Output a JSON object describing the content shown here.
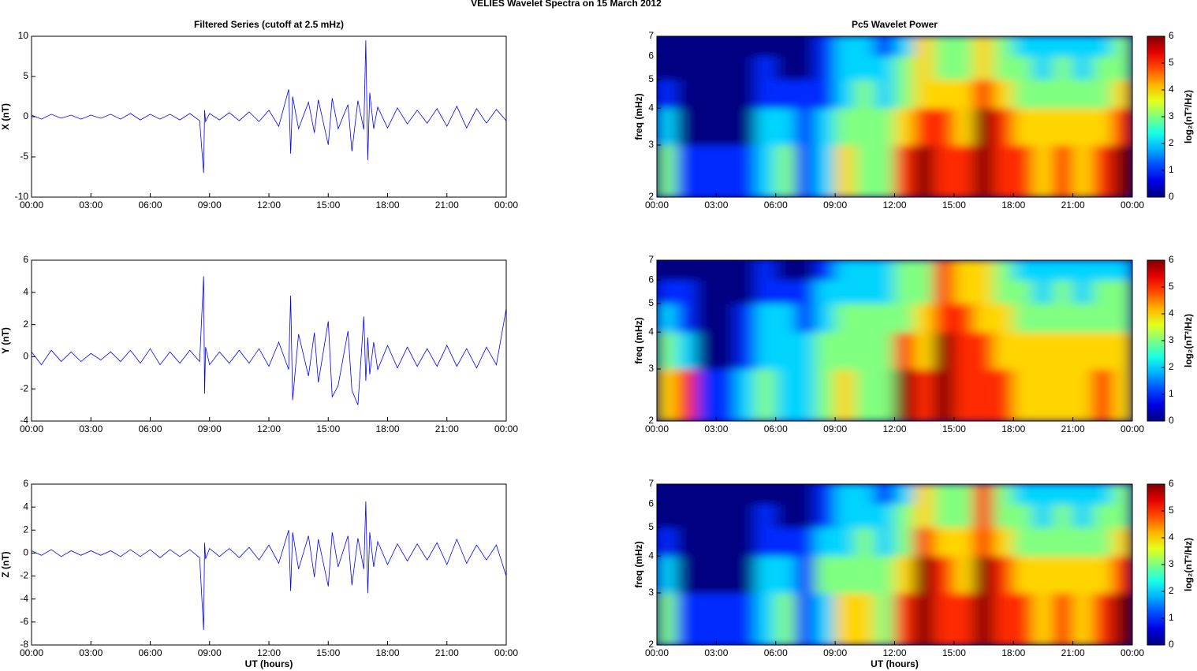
{
  "title": "VELIES Wavelet Spectra on 15 March     2012",
  "chart_data": [
    {
      "type": "line",
      "title": "Filtered Series (cutoff at 2.5 mHz)",
      "ylabel": "X (nT)",
      "x": [
        0,
        0.5,
        1,
        1.5,
        2,
        2.5,
        3,
        3.5,
        4,
        4.5,
        5,
        5.5,
        6,
        6.5,
        7,
        7.5,
        8,
        8.5,
        8.7,
        8.75,
        8.8,
        9,
        9.5,
        10,
        10.5,
        11,
        11.5,
        12,
        12.5,
        13,
        13.1,
        13.2,
        13.5,
        14,
        14.3,
        14.5,
        15,
        15.2,
        15.5,
        16,
        16.2,
        16.5,
        16.8,
        16.9,
        17,
        17.1,
        17.3,
        17.5,
        18,
        18.5,
        19,
        19.5,
        20,
        20.5,
        21,
        21.5,
        22,
        22.5,
        23,
        23.5,
        24
      ],
      "series": [
        {
          "color": "#0000ff",
          "values": [
            0.2,
            -0.3,
            0.3,
            -0.2,
            0.2,
            -0.3,
            0.2,
            -0.2,
            0.3,
            -0.3,
            0.4,
            -0.4,
            0.3,
            -0.3,
            0.3,
            -0.4,
            0.4,
            -0.5,
            -7,
            0.8,
            -0.6,
            0.4,
            -0.4,
            0.5,
            -0.5,
            0.6,
            -0.6,
            0.8,
            -1.2,
            3.4,
            -4.6,
            2.5,
            -1.5,
            1.8,
            -2,
            2.1,
            -3.5,
            2.3,
            -1.5,
            1.5,
            -4.3,
            2,
            -1.6,
            9.5,
            -5.4,
            3,
            -1.5,
            1.2,
            -1.4,
            1.1,
            -0.9,
            0.8,
            -0.8,
            1,
            -1.2,
            1.3,
            -1.4,
            1,
            -0.8,
            0.9,
            -0.5
          ]
        }
      ],
      "xlim": [
        0,
        24
      ],
      "xticks": [
        {
          "value": 0,
          "label": "00:00"
        },
        {
          "value": 3,
          "label": "03:00"
        },
        {
          "value": 6,
          "label": "06:00"
        },
        {
          "value": 9,
          "label": "09:00"
        },
        {
          "value": 12,
          "label": "12:00"
        },
        {
          "value": 15,
          "label": "15:00"
        },
        {
          "value": 18,
          "label": "18:00"
        },
        {
          "value": 21,
          "label": "21:00"
        },
        {
          "value": 24,
          "label": "00:00"
        }
      ],
      "ylim": [
        -10,
        10
      ],
      "yticks": [
        -10,
        -5,
        0,
        5,
        10
      ]
    },
    {
      "type": "heatmap",
      "title": "Pc5 Wavelet Power",
      "ylabel": "freq (mHz)",
      "colorbar_label": "log₂(nT²/Hz)",
      "colormap": "jet",
      "log_y": true,
      "x": [
        0,
        1,
        2,
        3,
        4,
        5,
        6,
        7,
        8,
        9,
        10,
        11,
        12,
        13,
        14,
        15,
        16,
        17,
        18,
        19,
        20,
        21,
        22,
        23,
        24
      ],
      "y": [
        2,
        3,
        4,
        5,
        6,
        7
      ],
      "values": [
        [
          3,
          1,
          1,
          1,
          1,
          2,
          3,
          1,
          2,
          4,
          3,
          3,
          5,
          6,
          5,
          5,
          6,
          5,
          5,
          4,
          5,
          4,
          5,
          6
        ],
        [
          2,
          0,
          0,
          0,
          0,
          2,
          2,
          1,
          2,
          3,
          3,
          3,
          4,
          5,
          5,
          4,
          6,
          5,
          4,
          4,
          4,
          4,
          4,
          5
        ],
        [
          1,
          0,
          0,
          0,
          0,
          1,
          1,
          1,
          1,
          2,
          3,
          2,
          3,
          4,
          4,
          4,
          5,
          4,
          3,
          3,
          3,
          3,
          3,
          4
        ],
        [
          0,
          0,
          0,
          0,
          0,
          1,
          0,
          0,
          1,
          2,
          2,
          2,
          3,
          4,
          3,
          3,
          4,
          3,
          3,
          2,
          3,
          2,
          3,
          3
        ],
        [
          0,
          0,
          0,
          0,
          0,
          0,
          0,
          0,
          1,
          2,
          2,
          1,
          2,
          4,
          3,
          3,
          4,
          3,
          2,
          2,
          2,
          2,
          2,
          3
        ]
      ],
      "xlim": [
        0,
        24
      ],
      "xticks": [
        {
          "value": 0,
          "label": "00:00"
        },
        {
          "value": 3,
          "label": "03:00"
        },
        {
          "value": 6,
          "label": "06:00"
        },
        {
          "value": 9,
          "label": "09:00"
        },
        {
          "value": 12,
          "label": "12:00"
        },
        {
          "value": 15,
          "label": "15:00"
        },
        {
          "value": 18,
          "label": "18:00"
        },
        {
          "value": 21,
          "label": "21:00"
        },
        {
          "value": 24,
          "label": "00:00"
        }
      ],
      "ylim": [
        2,
        7
      ],
      "yticks": [
        2,
        3,
        4,
        5,
        6,
        7
      ],
      "clim": [
        0,
        6
      ],
      "cticks": [
        0,
        1,
        2,
        3,
        4,
        5,
        6
      ]
    },
    {
      "type": "line",
      "ylabel": "Y (nT)",
      "x": [
        0,
        0.5,
        1,
        1.5,
        2,
        2.5,
        3,
        3.5,
        4,
        4.5,
        5,
        5.5,
        6,
        6.5,
        7,
        7.5,
        8,
        8.5,
        8.7,
        8.75,
        8.8,
        9,
        9.5,
        10,
        10.5,
        11,
        11.5,
        12,
        12.5,
        13,
        13.1,
        13.2,
        13.5,
        14,
        14.3,
        14.5,
        15,
        15.2,
        15.5,
        16,
        16.2,
        16.5,
        16.8,
        16.9,
        17,
        17.1,
        17.3,
        17.5,
        18,
        18.5,
        19,
        19.5,
        20,
        20.5,
        21,
        21.5,
        22,
        22.5,
        23,
        23.5,
        24
      ],
      "series": [
        {
          "color": "#0000ff",
          "values": [
            0.3,
            -0.5,
            0.4,
            -0.3,
            0.3,
            -0.3,
            0.2,
            -0.2,
            0.3,
            -0.3,
            0.4,
            -0.4,
            0.5,
            -0.5,
            0.3,
            -0.4,
            0.4,
            -0.3,
            5,
            -2.3,
            0.6,
            -0.5,
            0.3,
            -0.4,
            0.4,
            -0.4,
            0.5,
            -0.6,
            0.9,
            -0.8,
            3.8,
            -2.7,
            1.4,
            -1.2,
            1.5,
            -1.6,
            2.2,
            -2.5,
            -1.8,
            1.6,
            -2.1,
            -3,
            2.5,
            -1.5,
            1.2,
            -1.1,
            0.9,
            -0.8,
            0.7,
            -0.7,
            0.6,
            -0.6,
            0.5,
            -0.6,
            0.7,
            -0.6,
            0.5,
            -0.7,
            0.6,
            -0.5,
            3
          ]
        }
      ],
      "xlim": [
        0,
        24
      ],
      "xticks": [
        {
          "value": 0,
          "label": "00:00"
        },
        {
          "value": 3,
          "label": "03:00"
        },
        {
          "value": 6,
          "label": "06:00"
        },
        {
          "value": 9,
          "label": "09:00"
        },
        {
          "value": 12,
          "label": "12:00"
        },
        {
          "value": 15,
          "label": "15:00"
        },
        {
          "value": 18,
          "label": "18:00"
        },
        {
          "value": 21,
          "label": "21:00"
        },
        {
          "value": 24,
          "label": "00:00"
        }
      ],
      "ylim": [
        -4,
        6
      ],
      "yticks": [
        -4,
        -2,
        0,
        2,
        4,
        6
      ]
    },
    {
      "type": "heatmap",
      "ylabel": "freq (mHz)",
      "colorbar_label": "log₂(nT²/Hz)",
      "colormap": "jet",
      "log_y": true,
      "x": [
        0,
        1,
        2,
        3,
        4,
        5,
        6,
        7,
        8,
        9,
        10,
        11,
        12,
        13,
        14,
        15,
        16,
        17,
        18,
        19,
        20,
        21,
        22,
        23,
        24
      ],
      "y": [
        2,
        3,
        4,
        5,
        6,
        7
      ],
      "values": [
        [
          4,
          5,
          1,
          1,
          2,
          3,
          2,
          2,
          3,
          4,
          3,
          3,
          6,
          5,
          6,
          5,
          5,
          5,
          4,
          4,
          4,
          4,
          5,
          4
        ],
        [
          3,
          2,
          0,
          0,
          1,
          2,
          2,
          2,
          3,
          3,
          3,
          3,
          5,
          4,
          6,
          5,
          5,
          4,
          4,
          4,
          4,
          4,
          4,
          4
        ],
        [
          2,
          1,
          0,
          0,
          1,
          2,
          2,
          1,
          2,
          3,
          3,
          3,
          3,
          4,
          5,
          5,
          4,
          4,
          3,
          3,
          3,
          3,
          3,
          3
        ],
        [
          1,
          1,
          0,
          0,
          0,
          1,
          1,
          1,
          2,
          2,
          2,
          2,
          3,
          3,
          5,
          4,
          4,
          3,
          3,
          2,
          3,
          2,
          3,
          3
        ],
        [
          0,
          0,
          0,
          0,
          0,
          1,
          0,
          0,
          1,
          2,
          2,
          2,
          3,
          3,
          5,
          4,
          4,
          3,
          2,
          2,
          2,
          2,
          2,
          2
        ]
      ],
      "xlim": [
        0,
        24
      ],
      "xticks": [
        {
          "value": 0,
          "label": "00:00"
        },
        {
          "value": 3,
          "label": "03:00"
        },
        {
          "value": 6,
          "label": "06:00"
        },
        {
          "value": 9,
          "label": "09:00"
        },
        {
          "value": 12,
          "label": "12:00"
        },
        {
          "value": 15,
          "label": "15:00"
        },
        {
          "value": 18,
          "label": "18:00"
        },
        {
          "value": 21,
          "label": "21:00"
        },
        {
          "value": 24,
          "label": "00:00"
        }
      ],
      "ylim": [
        2,
        7
      ],
      "yticks": [
        2,
        3,
        4,
        5,
        6,
        7
      ],
      "clim": [
        0,
        6
      ],
      "cticks": [
        0,
        1,
        2,
        3,
        4,
        5,
        6
      ]
    },
    {
      "type": "line",
      "ylabel": "Z (nT)",
      "xlabel": "UT (hours)",
      "x": [
        0,
        0.5,
        1,
        1.5,
        2,
        2.5,
        3,
        3.5,
        4,
        4.5,
        5,
        5.5,
        6,
        6.5,
        7,
        7.5,
        8,
        8.5,
        8.7,
        8.75,
        8.8,
        9,
        9.5,
        10,
        10.5,
        11,
        11.5,
        12,
        12.5,
        13,
        13.1,
        13.2,
        13.5,
        14,
        14.3,
        14.5,
        15,
        15.2,
        15.5,
        16,
        16.2,
        16.5,
        16.8,
        16.9,
        17,
        17.1,
        17.3,
        17.5,
        18,
        18.5,
        19,
        19.5,
        20,
        20.5,
        21,
        21.5,
        22,
        22.5,
        23,
        23.5,
        24
      ],
      "series": [
        {
          "color": "#0000ff",
          "values": [
            0.2,
            -0.2,
            0.3,
            -0.3,
            0.2,
            -0.2,
            0.2,
            -0.2,
            0.2,
            -0.3,
            0.3,
            -0.3,
            0.3,
            -0.4,
            0.3,
            -0.3,
            0.3,
            -0.4,
            -6.7,
            0.9,
            -0.5,
            0.4,
            -0.3,
            0.4,
            -0.4,
            0.5,
            -0.6,
            0.7,
            -0.9,
            2,
            -3.3,
            1.8,
            -1.4,
            1.5,
            -2.1,
            1.2,
            -2.9,
            1.8,
            -1.2,
            1.5,
            -2.8,
            1.3,
            -1.4,
            4.5,
            -3.5,
            1.8,
            -1.2,
            1,
            -1,
            0.8,
            -0.7,
            0.8,
            -0.6,
            0.9,
            -1,
            1.2,
            -0.9,
            0.7,
            -0.6,
            0.7,
            -2
          ]
        }
      ],
      "xlim": [
        0,
        24
      ],
      "xticks": [
        {
          "value": 0,
          "label": "00:00"
        },
        {
          "value": 3,
          "label": "03:00"
        },
        {
          "value": 6,
          "label": "06:00"
        },
        {
          "value": 9,
          "label": "09:00"
        },
        {
          "value": 12,
          "label": "12:00"
        },
        {
          "value": 15,
          "label": "15:00"
        },
        {
          "value": 18,
          "label": "18:00"
        },
        {
          "value": 21,
          "label": "21:00"
        },
        {
          "value": 24,
          "label": "00:00"
        }
      ],
      "ylim": [
        -8,
        6
      ],
      "yticks": [
        -8,
        -6,
        -4,
        -2,
        0,
        2,
        4,
        6
      ]
    },
    {
      "type": "heatmap",
      "ylabel": "freq (mHz)",
      "xlabel": "UT (hours)",
      "colorbar_label": "log₂(nT²/Hz)",
      "colormap": "jet",
      "log_y": true,
      "x": [
        0,
        1,
        2,
        3,
        4,
        5,
        6,
        7,
        8,
        9,
        10,
        11,
        12,
        13,
        14,
        15,
        16,
        17,
        18,
        19,
        20,
        21,
        22,
        23,
        24
      ],
      "y": [
        2,
        3,
        4,
        5,
        6,
        7
      ],
      "values": [
        [
          3,
          1,
          1,
          1,
          1,
          2,
          3,
          1,
          2,
          4,
          4,
          3,
          5,
          6,
          5,
          5,
          6,
          5,
          5,
          4,
          5,
          4,
          5,
          6
        ],
        [
          2,
          0,
          0,
          0,
          0,
          2,
          2,
          1,
          3,
          3,
          3,
          3,
          4,
          6,
          5,
          4,
          6,
          5,
          4,
          4,
          4,
          4,
          4,
          5
        ],
        [
          1,
          0,
          0,
          0,
          0,
          1,
          1,
          1,
          2,
          2,
          3,
          2,
          3,
          5,
          4,
          4,
          5,
          4,
          3,
          3,
          3,
          3,
          3,
          4
        ],
        [
          0,
          0,
          0,
          0,
          0,
          1,
          0,
          0,
          1,
          2,
          2,
          2,
          3,
          4,
          3,
          3,
          5,
          3,
          3,
          2,
          3,
          2,
          3,
          3
        ],
        [
          0,
          0,
          0,
          0,
          0,
          0,
          0,
          0,
          1,
          2,
          2,
          1,
          2,
          4,
          3,
          3,
          5,
          3,
          2,
          2,
          2,
          2,
          2,
          3
        ]
      ],
      "xlim": [
        0,
        24
      ],
      "xticks": [
        {
          "value": 0,
          "label": "00:00"
        },
        {
          "value": 3,
          "label": "03:00"
        },
        {
          "value": 6,
          "label": "06:00"
        },
        {
          "value": 9,
          "label": "09:00"
        },
        {
          "value": 12,
          "label": "12:00"
        },
        {
          "value": 15,
          "label": "15:00"
        },
        {
          "value": 18,
          "label": "18:00"
        },
        {
          "value": 21,
          "label": "21:00"
        },
        {
          "value": 24,
          "label": "00:00"
        }
      ],
      "ylim": [
        2,
        7
      ],
      "yticks": [
        2,
        3,
        4,
        5,
        6,
        7
      ],
      "clim": [
        0,
        6
      ],
      "cticks": [
        0,
        1,
        2,
        3,
        4,
        5,
        6
      ]
    }
  ]
}
